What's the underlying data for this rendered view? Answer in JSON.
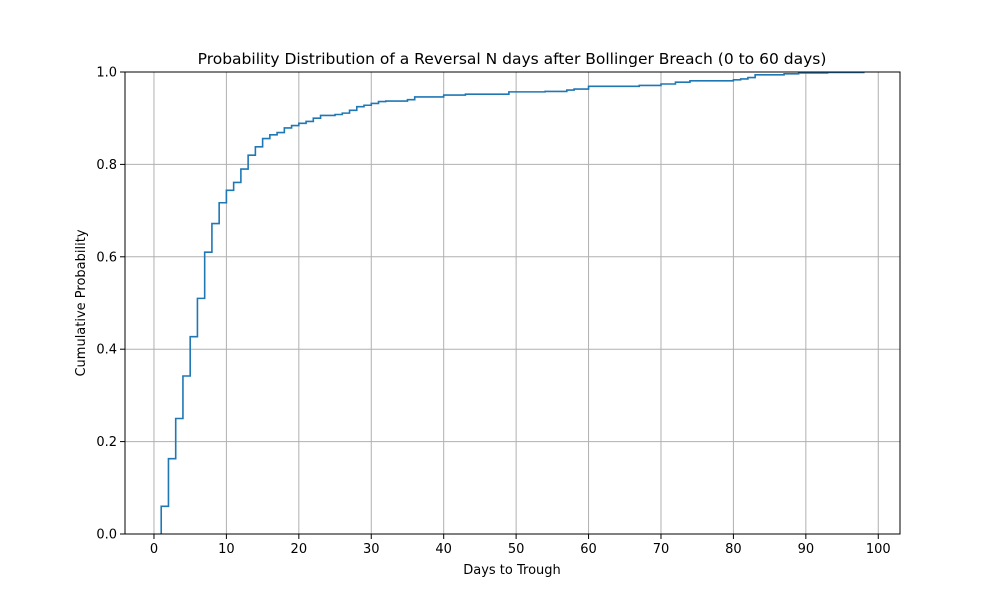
{
  "chart_data": {
    "type": "line",
    "step": "post",
    "title": "Probability Distribution of a Reversal N days after Bollinger Breach (0 to 60 days)",
    "xlabel": "Days to Trough",
    "ylabel": "Cumulative Probability",
    "xlim": [
      -4,
      103
    ],
    "ylim": [
      0,
      1
    ],
    "xticks": [
      0,
      10,
      20,
      30,
      40,
      50,
      60,
      70,
      80,
      90,
      100
    ],
    "yticks": [
      0.0,
      0.2,
      0.4,
      0.6,
      0.8,
      1.0
    ],
    "xtick_labels": [
      "0",
      "10",
      "20",
      "30",
      "40",
      "50",
      "60",
      "70",
      "80",
      "90",
      "100"
    ],
    "ytick_labels": [
      "0.0",
      "0.2",
      "0.4",
      "0.6",
      "0.8",
      "1.0"
    ],
    "grid": true,
    "colors": {
      "line": "#1f77b4",
      "grid": "#b0b0b0",
      "axes": "#000000"
    },
    "series": [
      {
        "x": [
          1,
          2,
          3,
          4,
          5,
          6,
          7,
          8,
          9,
          10,
          11,
          12,
          13,
          14,
          15,
          16,
          17,
          18,
          19,
          20,
          21,
          22,
          23,
          25,
          26,
          27,
          28,
          29,
          30,
          31,
          32,
          35,
          36,
          40,
          43,
          49,
          54,
          57,
          58,
          60,
          67,
          70,
          72,
          74,
          80,
          81,
          82,
          83,
          87,
          89,
          93,
          98
        ],
        "y": [
          0.06,
          0.163,
          0.25,
          0.342,
          0.427,
          0.51,
          0.61,
          0.672,
          0.717,
          0.744,
          0.761,
          0.79,
          0.82,
          0.838,
          0.856,
          0.864,
          0.869,
          0.879,
          0.884,
          0.889,
          0.893,
          0.9,
          0.906,
          0.908,
          0.911,
          0.917,
          0.925,
          0.928,
          0.932,
          0.936,
          0.937,
          0.94,
          0.946,
          0.95,
          0.952,
          0.957,
          0.958,
          0.961,
          0.963,
          0.969,
          0.971,
          0.974,
          0.978,
          0.981,
          0.983,
          0.985,
          0.988,
          0.994,
          0.996,
          0.998,
          0.999,
          1.0
        ]
      }
    ]
  }
}
